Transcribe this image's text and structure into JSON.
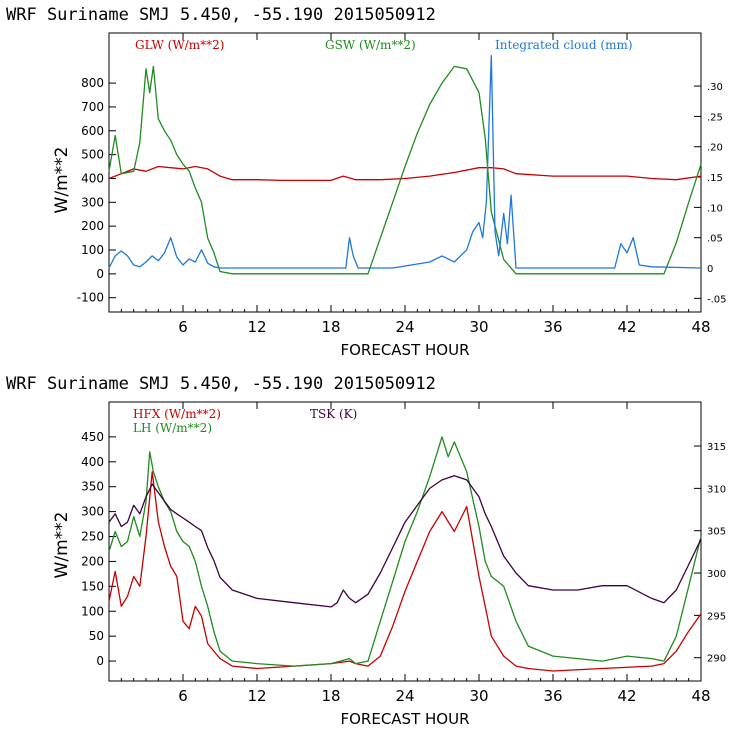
{
  "charts": [
    {
      "title": "WRF   Suriname SMJ   5.450, -55.190  2015050912",
      "legend": [
        {
          "label": "GLW (W/m**2)",
          "color": "#c80000"
        },
        {
          "label": "GSW (W/m**2)",
          "color": "#1e8c1e"
        },
        {
          "label": "Integrated cloud (mm)",
          "color": "#1e78dc"
        }
      ]
    },
    {
      "title": "WRF   Suriname SMJ   5.450, -55.190  2015050912",
      "legend": [
        {
          "label": "HFX (W/m**2)",
          "color": "#c80000"
        },
        {
          "label": "LH  (W/m**2)",
          "color": "#1e8c1e"
        },
        {
          "label": "TSK (K)",
          "color": "#400040"
        }
      ]
    }
  ],
  "chart_data": [
    {
      "type": "line",
      "title": "WRF   Suriname SMJ   5.450, -55.190  2015050912",
      "xlabel": "FORECAST HOUR",
      "ylabel": "W/m**2",
      "xlim": [
        0,
        48
      ],
      "ylim": [
        -160,
        1010
      ],
      "xticks": [
        6,
        12,
        18,
        24,
        30,
        36,
        42,
        48
      ],
      "yticks": [
        -100,
        0,
        100,
        200,
        300,
        400,
        500,
        600,
        700,
        800
      ],
      "y2ticks": [
        -0.05,
        0,
        0.05,
        0.1,
        0.15,
        0.2,
        0.25,
        0.3
      ],
      "y2tick_labels": [
        "-.05",
        "0",
        ".05",
        ".10",
        ".15",
        ".20",
        ".25",
        ".30"
      ],
      "y2lim": [
        -0.0725,
        0.3875
      ],
      "series": [
        {
          "name": "GLW (W/m**2)",
          "color": "#c80000",
          "axis": "left",
          "x": [
            0,
            1,
            2,
            3,
            4,
            5,
            6,
            7,
            8,
            9,
            10,
            12,
            14,
            16,
            18,
            19,
            20,
            22,
            24,
            26,
            28,
            30,
            31,
            32,
            33,
            36,
            40,
            42,
            44,
            46,
            48
          ],
          "y": [
            400,
            420,
            440,
            430,
            450,
            445,
            440,
            450,
            440,
            410,
            395,
            395,
            392,
            392,
            392,
            410,
            395,
            395,
            400,
            410,
            425,
            445,
            445,
            440,
            420,
            410,
            410,
            410,
            400,
            395,
            410
          ]
        },
        {
          "name": "GSW (W/m**2)",
          "color": "#1e8c1e",
          "axis": "left",
          "x": [
            0,
            0.5,
            1,
            2,
            2.5,
            3,
            3.3,
            3.6,
            4,
            4.5,
            5,
            5.5,
            6,
            6.5,
            7,
            7.5,
            8,
            8.5,
            9,
            10,
            12,
            18,
            21,
            22,
            23,
            24,
            25,
            26,
            27,
            28,
            29,
            30,
            30.5,
            31,
            32,
            33,
            36,
            42,
            45,
            46,
            47,
            48
          ],
          "y": [
            430,
            580,
            420,
            430,
            550,
            860,
            760,
            870,
            650,
            600,
            560,
            500,
            460,
            430,
            360,
            300,
            150,
            90,
            10,
            0,
            0,
            0,
            0,
            150,
            300,
            450,
            590,
            710,
            800,
            870,
            860,
            760,
            570,
            260,
            60,
            0,
            0,
            0,
            0,
            130,
            300,
            460
          ]
        },
        {
          "name": "Integrated cloud (mm)",
          "color": "#1e78dc",
          "axis": "right",
          "x": [
            0,
            0.5,
            1,
            1.5,
            2,
            2.5,
            3,
            3.5,
            4,
            4.5,
            5,
            5.5,
            6,
            6.5,
            7,
            7.5,
            8,
            8.5,
            9,
            12,
            18,
            19.2,
            19.5,
            19.8,
            20.2,
            23,
            26,
            27,
            28,
            29,
            29.5,
            30,
            30.3,
            30.6,
            31,
            31.3,
            31.6,
            32,
            32.3,
            32.6,
            33,
            36,
            41,
            41.5,
            42,
            42.5,
            43,
            44,
            48
          ],
          "y": [
            0,
            0.02,
            0.028,
            0.02,
            0.005,
            0.002,
            0.01,
            0.02,
            0.012,
            0.025,
            0.05,
            0.018,
            0.005,
            0.015,
            0.01,
            0.03,
            0.008,
            0.002,
            0,
            0,
            0,
            0,
            0.05,
            0.02,
            0,
            0,
            0.01,
            0.02,
            0.01,
            0.03,
            0.06,
            0.075,
            0.05,
            0.11,
            0.35,
            0.06,
            0.02,
            0.09,
            0.04,
            0.12,
            0,
            0,
            0,
            0.04,
            0.025,
            0.05,
            0.005,
            0.002,
            0
          ]
        }
      ]
    },
    {
      "type": "line",
      "title": "WRF   Suriname SMJ   5.450, -55.190  2015050912",
      "xlabel": "FORECAST HOUR",
      "ylabel": "W/m**2",
      "xlim": [
        0,
        48
      ],
      "ylim": [
        -40,
        520
      ],
      "xticks": [
        6,
        12,
        18,
        24,
        30,
        36,
        42,
        48
      ],
      "yticks": [
        0,
        50,
        100,
        150,
        200,
        250,
        300,
        350,
        400,
        450
      ],
      "y2ticks": [
        290,
        295,
        300,
        305,
        310,
        315
      ],
      "y2lim": [
        287.25,
        320.2
      ],
      "series": [
        {
          "name": "HFX (W/m**2)",
          "color": "#c80000",
          "axis": "left",
          "x": [
            0,
            0.5,
            1,
            1.5,
            2,
            2.5,
            3,
            3.5,
            4,
            4.5,
            5,
            5.5,
            6,
            6.5,
            7,
            7.5,
            8,
            8.5,
            9,
            10,
            12,
            15,
            18,
            19.5,
            20,
            21,
            22,
            23,
            24,
            25,
            26,
            27,
            28,
            29,
            30,
            30.5,
            31,
            32,
            33,
            34,
            36,
            40,
            44,
            45,
            46,
            47,
            48
          ],
          "y": [
            120,
            180,
            110,
            130,
            170,
            150,
            250,
            380,
            280,
            230,
            190,
            170,
            80,
            65,
            110,
            90,
            35,
            20,
            5,
            -10,
            -15,
            -10,
            -5,
            0,
            -5,
            -10,
            10,
            70,
            140,
            200,
            260,
            300,
            260,
            310,
            170,
            110,
            50,
            10,
            -10,
            -15,
            -20,
            -15,
            -10,
            -5,
            20,
            60,
            95
          ]
        },
        {
          "name": "LH  (W/m**2)",
          "color": "#1e8c1e",
          "axis": "left",
          "x": [
            0,
            0.5,
            1,
            1.5,
            2,
            2.5,
            3,
            3.3,
            3.6,
            4,
            4.5,
            5,
            5.5,
            6,
            6.5,
            7,
            7.5,
            8,
            8.5,
            9,
            10,
            12,
            15,
            18,
            19.5,
            20,
            21,
            22,
            23,
            24,
            25,
            26,
            27,
            27.5,
            28,
            29,
            30,
            30.5,
            31,
            32,
            33,
            34,
            36,
            40,
            42,
            44,
            45,
            46,
            47,
            48
          ],
          "y": [
            220,
            260,
            230,
            240,
            290,
            250,
            320,
            420,
            380,
            350,
            320,
            300,
            260,
            240,
            230,
            200,
            150,
            110,
            60,
            20,
            0,
            -5,
            -10,
            -5,
            5,
            -5,
            0,
            80,
            160,
            240,
            300,
            370,
            450,
            410,
            440,
            380,
            270,
            200,
            170,
            150,
            80,
            30,
            10,
            0,
            10,
            5,
            0,
            50,
            150,
            250
          ]
        },
        {
          "name": "TSK (K)",
          "color": "#400040",
          "axis": "right",
          "x": [
            0,
            0.5,
            1,
            1.5,
            2,
            2.5,
            3,
            3.5,
            4,
            4.5,
            5,
            5.5,
            6,
            6.5,
            7,
            7.5,
            8,
            8.5,
            9,
            10,
            12,
            15,
            18,
            18.5,
            19,
            19.5,
            20,
            21,
            22,
            23,
            24,
            25,
            26,
            27,
            28,
            29,
            30,
            30.5,
            31,
            32,
            33,
            34,
            36,
            38,
            40,
            42,
            44,
            45,
            46,
            47,
            48
          ],
          "y": [
            306,
            307,
            305.5,
            306,
            308,
            307,
            309,
            310.5,
            309.5,
            308.5,
            307.5,
            307,
            306.5,
            306,
            305.5,
            305,
            303,
            301.5,
            299.5,
            298,
            297,
            296.5,
            296,
            296.5,
            298,
            297,
            296.5,
            297.5,
            300,
            303,
            306,
            308,
            310,
            311,
            311.5,
            311,
            309,
            307,
            305.5,
            302,
            300,
            298.5,
            298,
            298,
            298.5,
            298.5,
            297,
            296.5,
            298,
            301,
            304
          ]
        }
      ]
    }
  ]
}
